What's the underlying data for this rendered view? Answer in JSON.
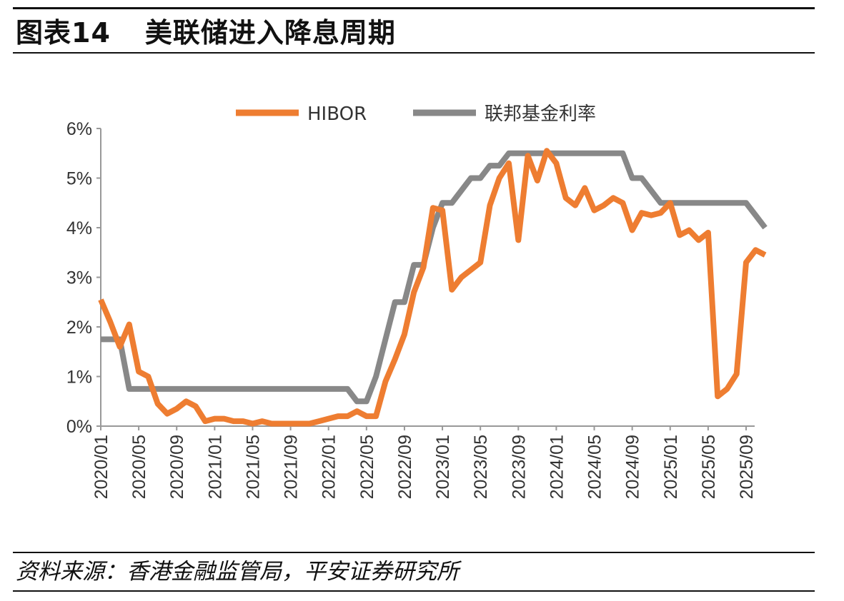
{
  "header": {
    "figure_label": "图表14",
    "title": "美联储进入降息周期"
  },
  "footer": {
    "source": "资料来源：香港金融监管局，平安证券研究所"
  },
  "chart_data": {
    "type": "line",
    "title": "美联储进入降息周期",
    "xlabel": "",
    "ylabel": "",
    "ylim": [
      0,
      6
    ],
    "y_ticks": [
      "0%",
      "1%",
      "2%",
      "3%",
      "4%",
      "5%",
      "6%"
    ],
    "x_tick_labels": [
      "2020/01",
      "2020/05",
      "2020/09",
      "2021/01",
      "2021/05",
      "2021/09",
      "2022/01",
      "2022/05",
      "2022/09",
      "2023/01",
      "2023/05",
      "2023/09",
      "2024/01",
      "2024/05",
      "2024/09",
      "2025/01",
      "2025/05",
      "2025/09"
    ],
    "legend_position": "top-center",
    "grid": false,
    "colors": {
      "HIBOR": "#ee7d31",
      "联邦基金利率": "#888888"
    },
    "series": [
      {
        "name": "HIBOR",
        "points": [
          [
            "2020/01",
            2.55
          ],
          [
            "2020/02",
            2.1
          ],
          [
            "2020/03",
            1.6
          ],
          [
            "2020/04",
            2.05
          ],
          [
            "2020/05",
            1.1
          ],
          [
            "2020/06",
            1.0
          ],
          [
            "2020/07",
            0.45
          ],
          [
            "2020/08",
            0.25
          ],
          [
            "2020/09",
            0.35
          ],
          [
            "2020/10",
            0.5
          ],
          [
            "2020/11",
            0.4
          ],
          [
            "2020/12",
            0.1
          ],
          [
            "2021/01",
            0.15
          ],
          [
            "2021/02",
            0.15
          ],
          [
            "2021/03",
            0.1
          ],
          [
            "2021/04",
            0.1
          ],
          [
            "2021/05",
            0.05
          ],
          [
            "2021/06",
            0.1
          ],
          [
            "2021/07",
            0.05
          ],
          [
            "2021/08",
            0.05
          ],
          [
            "2021/09",
            0.05
          ],
          [
            "2021/10",
            0.05
          ],
          [
            "2021/11",
            0.05
          ],
          [
            "2021/12",
            0.1
          ],
          [
            "2022/01",
            0.15
          ],
          [
            "2022/02",
            0.2
          ],
          [
            "2022/03",
            0.2
          ],
          [
            "2022/04",
            0.3
          ],
          [
            "2022/05",
            0.2
          ],
          [
            "2022/06",
            0.2
          ],
          [
            "2022/07",
            0.9
          ],
          [
            "2022/08",
            1.35
          ],
          [
            "2022/09",
            1.85
          ],
          [
            "2022/10",
            2.7
          ],
          [
            "2022/11",
            3.2
          ],
          [
            "2022/12",
            4.4
          ],
          [
            "2023/01",
            4.35
          ],
          [
            "2023/02",
            2.75
          ],
          [
            "2023/03",
            3.0
          ],
          [
            "2023/04",
            3.15
          ],
          [
            "2023/05",
            3.3
          ],
          [
            "2023/06",
            4.45
          ],
          [
            "2023/07",
            5.0
          ],
          [
            "2023/08",
            5.3
          ],
          [
            "2023/09",
            3.75
          ],
          [
            "2023/10",
            5.45
          ],
          [
            "2023/11",
            4.95
          ],
          [
            "2023/12",
            5.55
          ],
          [
            "2024/01",
            5.3
          ],
          [
            "2024/02",
            4.6
          ],
          [
            "2024/03",
            4.45
          ],
          [
            "2024/04",
            4.8
          ],
          [
            "2024/05",
            4.35
          ],
          [
            "2024/06",
            4.45
          ],
          [
            "2024/07",
            4.6
          ],
          [
            "2024/08",
            4.5
          ],
          [
            "2024/09",
            3.95
          ],
          [
            "2024/10",
            4.3
          ],
          [
            "2024/11",
            4.25
          ],
          [
            "2024/12",
            4.3
          ],
          [
            "2025/01",
            4.5
          ],
          [
            "2025/02",
            3.85
          ],
          [
            "2025/03",
            3.95
          ],
          [
            "2025/04",
            3.75
          ],
          [
            "2025/05",
            3.9
          ],
          [
            "2025/06",
            0.6
          ],
          [
            "2025/07",
            0.75
          ],
          [
            "2025/08",
            1.05
          ],
          [
            "2025/09",
            3.3
          ],
          [
            "2025/10",
            3.55
          ],
          [
            "2025/11",
            3.45
          ]
        ]
      },
      {
        "name": "联邦基金利率",
        "points": [
          [
            "2020/01",
            1.75
          ],
          [
            "2020/02",
            1.75
          ],
          [
            "2020/03",
            1.75
          ],
          [
            "2020/04",
            0.75
          ],
          [
            "2020/05",
            0.75
          ],
          [
            "2020/06",
            0.75
          ],
          [
            "2020/07",
            0.75
          ],
          [
            "2020/08",
            0.75
          ],
          [
            "2020/09",
            0.75
          ],
          [
            "2020/10",
            0.75
          ],
          [
            "2020/11",
            0.75
          ],
          [
            "2020/12",
            0.75
          ],
          [
            "2021/01",
            0.75
          ],
          [
            "2021/02",
            0.75
          ],
          [
            "2021/03",
            0.75
          ],
          [
            "2021/04",
            0.75
          ],
          [
            "2021/05",
            0.75
          ],
          [
            "2021/06",
            0.75
          ],
          [
            "2021/07",
            0.75
          ],
          [
            "2021/08",
            0.75
          ],
          [
            "2021/09",
            0.75
          ],
          [
            "2021/10",
            0.75
          ],
          [
            "2021/11",
            0.75
          ],
          [
            "2021/12",
            0.75
          ],
          [
            "2022/01",
            0.75
          ],
          [
            "2022/02",
            0.75
          ],
          [
            "2022/03",
            0.75
          ],
          [
            "2022/04",
            0.5
          ],
          [
            "2022/05",
            0.5
          ],
          [
            "2022/06",
            1.0
          ],
          [
            "2022/07",
            1.75
          ],
          [
            "2022/08",
            2.5
          ],
          [
            "2022/09",
            2.5
          ],
          [
            "2022/10",
            3.25
          ],
          [
            "2022/11",
            3.25
          ],
          [
            "2022/12",
            4.0
          ],
          [
            "2023/01",
            4.5
          ],
          [
            "2023/02",
            4.5
          ],
          [
            "2023/03",
            4.75
          ],
          [
            "2023/04",
            5.0
          ],
          [
            "2023/05",
            5.0
          ],
          [
            "2023/06",
            5.25
          ],
          [
            "2023/07",
            5.25
          ],
          [
            "2023/08",
            5.5
          ],
          [
            "2023/09",
            5.5
          ],
          [
            "2023/10",
            5.5
          ],
          [
            "2023/11",
            5.5
          ],
          [
            "2023/12",
            5.5
          ],
          [
            "2024/01",
            5.5
          ],
          [
            "2024/02",
            5.5
          ],
          [
            "2024/03",
            5.5
          ],
          [
            "2024/04",
            5.5
          ],
          [
            "2024/05",
            5.5
          ],
          [
            "2024/06",
            5.5
          ],
          [
            "2024/07",
            5.5
          ],
          [
            "2024/08",
            5.5
          ],
          [
            "2024/09",
            5.0
          ],
          [
            "2024/10",
            5.0
          ],
          [
            "2024/11",
            4.75
          ],
          [
            "2024/12",
            4.5
          ],
          [
            "2025/01",
            4.5
          ],
          [
            "2025/02",
            4.5
          ],
          [
            "2025/03",
            4.5
          ],
          [
            "2025/04",
            4.5
          ],
          [
            "2025/05",
            4.5
          ],
          [
            "2025/06",
            4.5
          ],
          [
            "2025/07",
            4.5
          ],
          [
            "2025/08",
            4.5
          ],
          [
            "2025/09",
            4.5
          ],
          [
            "2025/10",
            4.25
          ],
          [
            "2025/11",
            4.0
          ]
        ]
      }
    ]
  }
}
